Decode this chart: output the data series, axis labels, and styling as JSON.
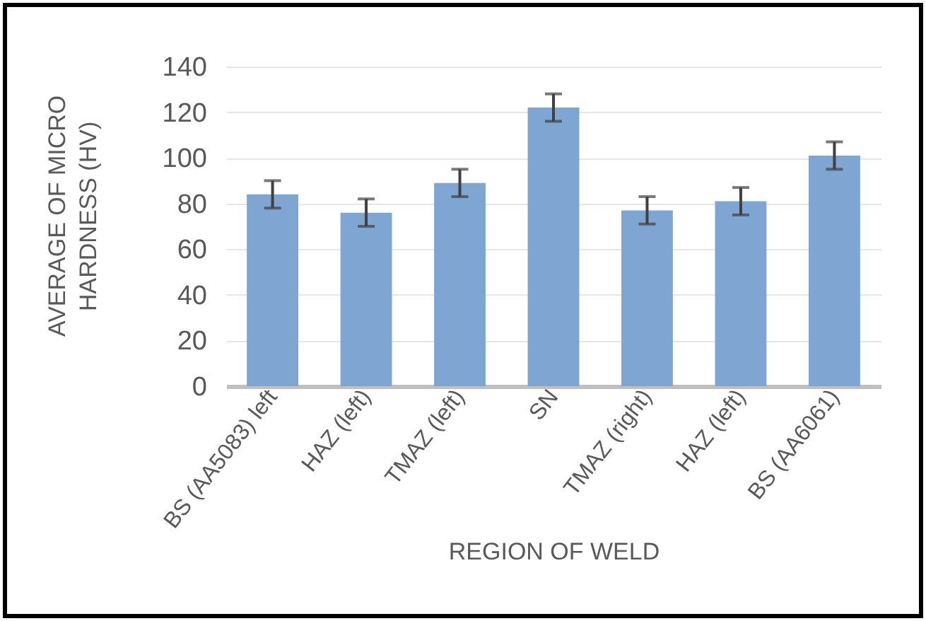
{
  "chart_data": {
    "type": "bar",
    "xlabel": "REGION OF WELD",
    "ylabel": "AVERAGE OF MICRO HARDNESS (HV)",
    "categories": [
      "BS (AA5083) left",
      "HAZ (left)",
      "TMAZ (left)",
      "SN",
      "TMAZ (right)",
      "HAZ (left)",
      "BS (AA6061)"
    ],
    "values": [
      84,
      76,
      89,
      122,
      77,
      81,
      101
    ],
    "errors": [
      6,
      6,
      6,
      6,
      6,
      6,
      6
    ],
    "color": "#7fa6d2",
    "ylim": [
      0,
      140
    ],
    "yticks": [
      0,
      20,
      40,
      60,
      80,
      100,
      120,
      140
    ],
    "grid": "y"
  }
}
